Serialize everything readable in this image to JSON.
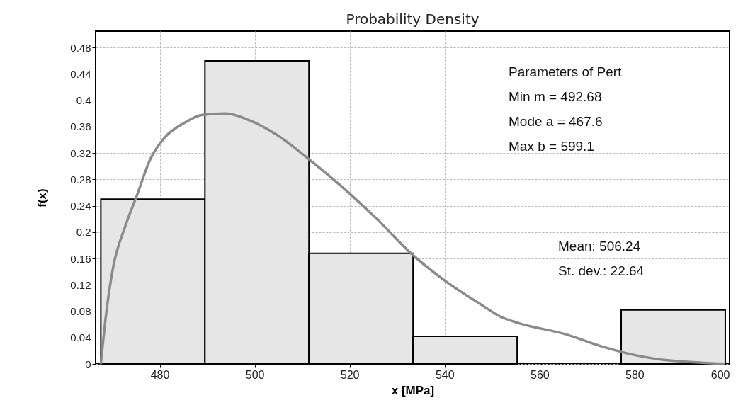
{
  "chart_data": {
    "type": "histogram",
    "title": "Probability Density",
    "xlabel": "x [MPa]",
    "ylabel": "f(x)",
    "bins": [
      467.6,
      489.52,
      511.43,
      533.35,
      555.27,
      577.18,
      599.1
    ],
    "values": [
      0.25,
      0.46,
      0.168,
      0.042,
      0,
      0.082
    ],
    "color": "#e6e6e6",
    "series": [
      {
        "type": "line",
        "color": "#8a8a8a",
        "x": [
          467.6,
          468.7,
          470.2,
          472.7,
          475.1,
          478.1,
          481.1,
          485.0,
          489.0,
          493.9,
          498.8,
          504.8,
          511.2,
          519.6,
          526.0,
          532.9,
          540.3,
          547.7,
          551.7,
          555.6,
          565.5,
          572.9,
          580.3,
          587.7,
          594.1,
          599.1
        ],
        "values": [
          0,
          0.075,
          0.147,
          0.208,
          0.254,
          0.312,
          0.344,
          0.365,
          0.378,
          0.38,
          0.37,
          0.347,
          0.312,
          0.261,
          0.218,
          0.168,
          0.125,
          0.09,
          0.072,
          0.062,
          0.045,
          0.027,
          0.013,
          0.005,
          0.002,
          0
        ]
      }
    ],
    "xlim": [
      466.5,
      600
    ],
    "xticks": [
      480,
      500,
      520,
      540,
      560,
      580,
      600
    ],
    "ylim": [
      0,
      0.505
    ],
    "yticks": [
      0,
      0.04,
      0.08,
      0.12,
      0.16,
      0.2,
      0.24,
      0.28,
      0.32,
      0.36,
      0.4,
      0.44,
      0.48
    ],
    "grid": true,
    "annotations": [
      "Parameters of Pert",
      "Min m =   492.68",
      "Mode a = 467.6",
      "Max b =    599.1",
      "Mean: 506.24",
      "St. dev.: 22.64"
    ]
  }
}
